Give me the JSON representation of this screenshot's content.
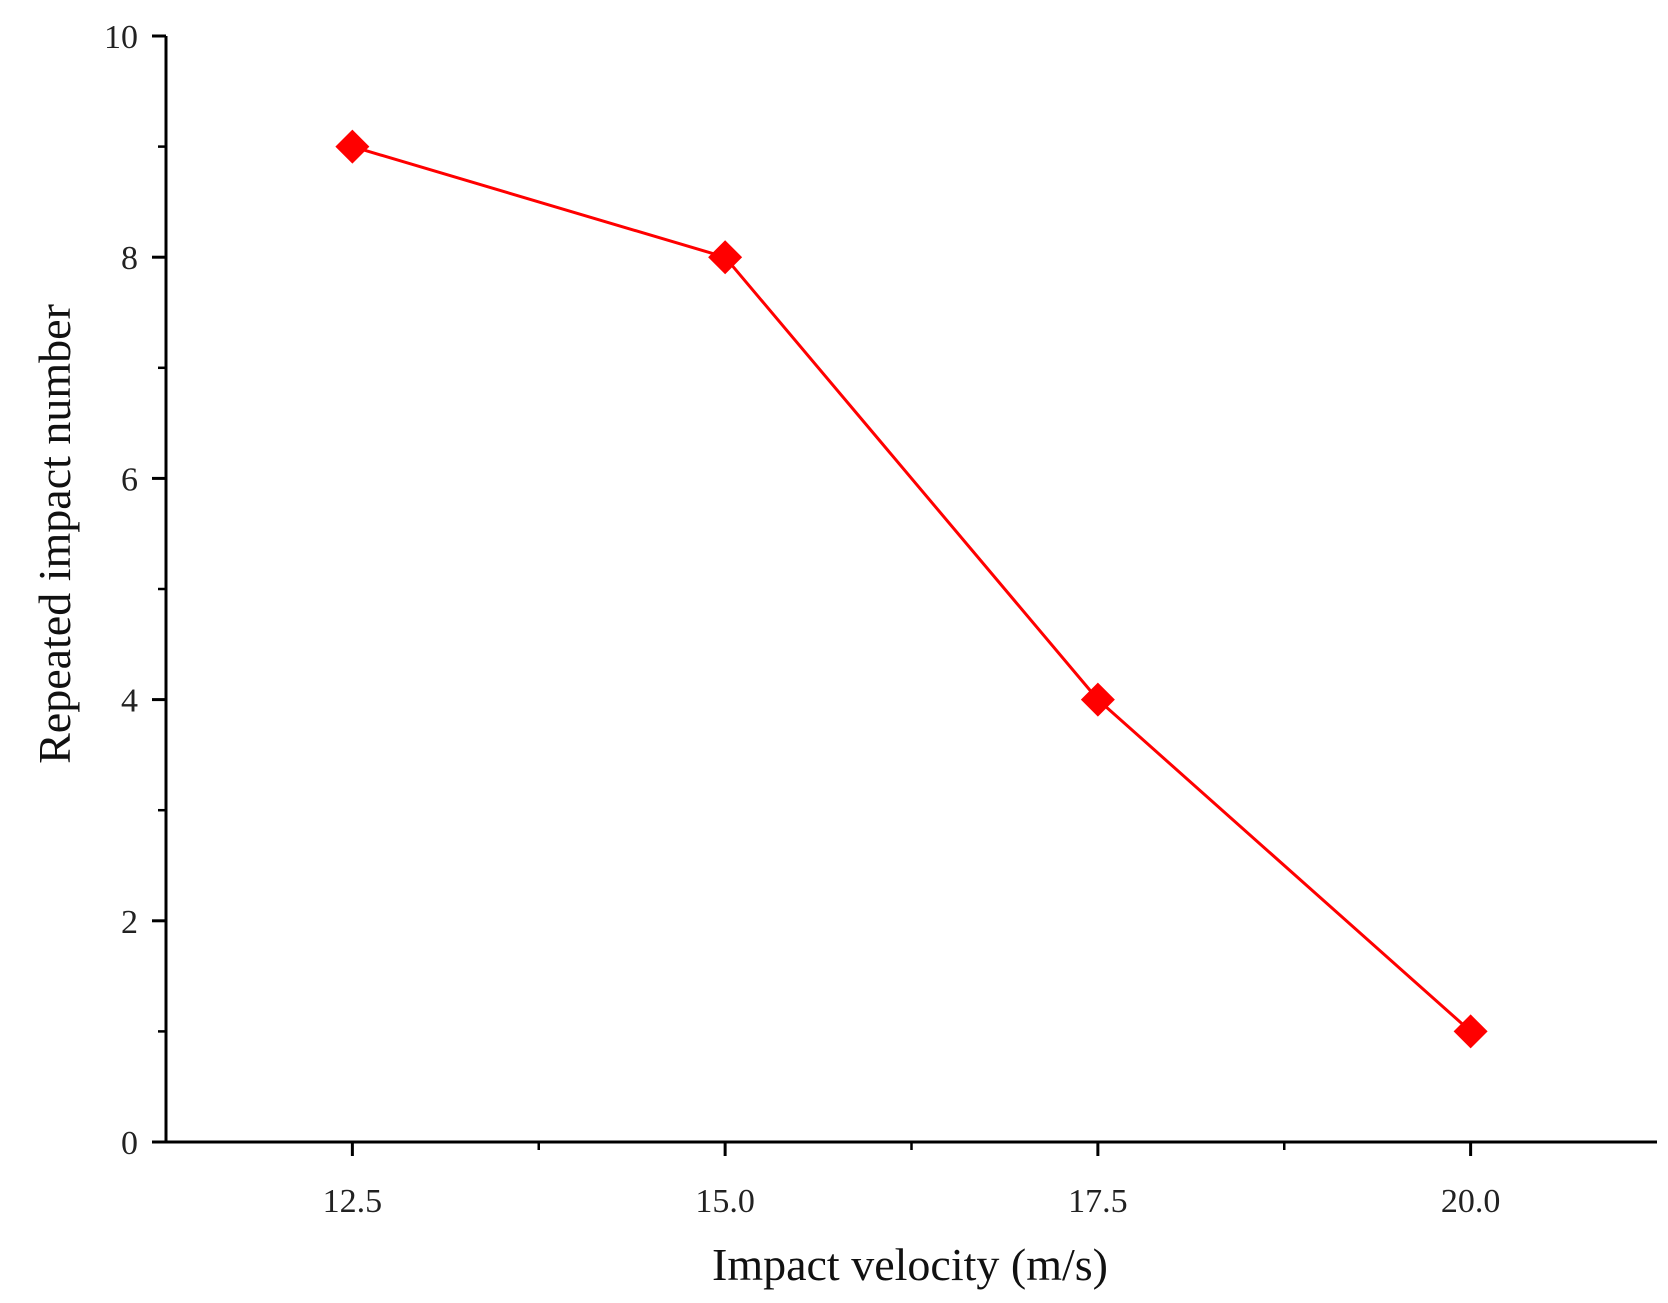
{
  "chart_data": {
    "type": "line",
    "title": "",
    "xlabel": "Impact velocity (m/s)",
    "ylabel": "Repeated impact number",
    "x": [
      12.5,
      15.0,
      17.5,
      20.0
    ],
    "series": [
      {
        "values": [
          9,
          8,
          4,
          1
        ],
        "color": "#ff0000",
        "marker": "diamond"
      }
    ],
    "xlim": [
      11.25,
      21.25
    ],
    "ylim": [
      0,
      10
    ],
    "x_major_ticks": [
      "12.5",
      "15.0",
      "17.5",
      "20.0"
    ],
    "x_minor_ticks": [
      13.75,
      16.25,
      18.75
    ],
    "y_major_ticks": [
      "0",
      "2",
      "4",
      "6",
      "8",
      "10"
    ],
    "y_minor_ticks": [
      1,
      3,
      5,
      7,
      9
    ],
    "grid": false,
    "legend": "none"
  }
}
